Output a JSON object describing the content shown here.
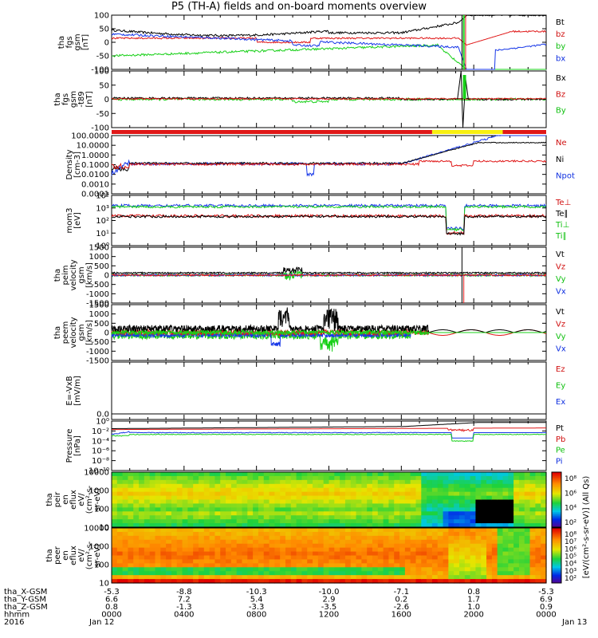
{
  "title": "P5 (TH-A) fields and on-board moments overview",
  "chart_data": {
    "type": "line",
    "panels": [
      {
        "id": "p1",
        "ylabel_lines": [
          "tha",
          "fgs",
          "gsm",
          "[nT]"
        ],
        "yticks": [
          "100",
          "50",
          "0",
          "-50",
          "-100"
        ],
        "ylim": [
          -100,
          100
        ],
        "legend": [
          {
            "text": "Bt",
            "color": "#000000"
          },
          {
            "text": "bz",
            "color": "#d01010"
          },
          {
            "text": "by",
            "color": "#10c010"
          },
          {
            "text": "bx",
            "color": "#1030e0"
          }
        ]
      },
      {
        "id": "p2",
        "ylabel_lines": [
          "tha",
          "fgs",
          "gsm",
          "-t89",
          "[nT]"
        ],
        "yticks": [
          "100",
          "50",
          "0",
          "-50",
          "-100"
        ],
        "ylim": [
          -120,
          120
        ],
        "legend": [
          {
            "text": "Bx",
            "color": "#000000"
          },
          {
            "text": "Bz",
            "color": "#d01010"
          },
          {
            "text": "By",
            "color": "#10c010"
          }
        ]
      },
      {
        "id": "p3",
        "ylabel_lines": [
          "Density",
          "[cm-3]"
        ],
        "yticks": [
          "100.0000",
          "10.0000",
          "1.0000",
          "0.1000",
          "0.0100",
          "0.0010",
          "0.0001"
        ],
        "legend": [
          {
            "text": "Ne",
            "color": "#d01010"
          },
          {
            "text": "Ni",
            "color": "#000000"
          },
          {
            "text": "Npot",
            "color": "#1030e0"
          }
        ]
      },
      {
        "id": "p4",
        "ylabel_lines": [
          "mom3",
          "[eV]"
        ],
        "yticks": [
          "10⁴",
          "10³",
          "10²",
          "10¹",
          "10⁰"
        ],
        "legend": [
          {
            "text": "Te⊥",
            "color": "#d01010"
          },
          {
            "text": "Te∥",
            "color": "#000000"
          },
          {
            "text": "Ti⊥",
            "color": "#10c010"
          },
          {
            "text": "Ti∥",
            "color": "#10c010"
          }
        ]
      },
      {
        "id": "p5",
        "ylabel_lines": [
          "tha",
          "peim",
          "velocity",
          "gsm",
          "[km/s]"
        ],
        "yticks": [
          "1500",
          "1000",
          "500",
          "0",
          "-500",
          "-1000",
          "-1500"
        ],
        "ylim": [
          -1500,
          1500
        ],
        "legend": [
          {
            "text": "Vt",
            "color": "#000000"
          },
          {
            "text": "Vz",
            "color": "#d01010"
          },
          {
            "text": "Vy",
            "color": "#10c010"
          },
          {
            "text": "Vx",
            "color": "#1030e0"
          }
        ]
      },
      {
        "id": "p6",
        "ylabel_lines": [
          "tha",
          "peem",
          "velocity",
          "gsm",
          "[km/s]"
        ],
        "yticks": [
          "1500",
          "1000",
          "500",
          "0",
          "-500",
          "-1000",
          "-1500"
        ],
        "ylim": [
          -1500,
          1500
        ],
        "legend": [
          {
            "text": "Vt",
            "color": "#000000"
          },
          {
            "text": "Vz",
            "color": "#d01010"
          },
          {
            "text": "Vy",
            "color": "#10c010"
          },
          {
            "text": "Vx",
            "color": "#1030e0"
          }
        ]
      },
      {
        "id": "p7",
        "ylabel_lines": [
          "E=-VxB",
          "[mV/m]"
        ],
        "yticks": [
          "0.0"
        ],
        "legend": [
          {
            "text": "Ez",
            "color": "#d01010"
          },
          {
            "text": "Ey",
            "color": "#10c010"
          },
          {
            "text": "Ex",
            "color": "#1030e0"
          }
        ]
      },
      {
        "id": "p8",
        "ylabel_lines": [
          "Pressure",
          "[nPa]"
        ],
        "yticks": [
          "10⁰",
          "10⁻²",
          "10⁻⁴",
          "10⁻⁶",
          "10⁻⁸",
          "10⁻¹⁰"
        ],
        "legend": [
          {
            "text": "Pt",
            "color": "#000000"
          },
          {
            "text": "Pb",
            "color": "#d01010"
          },
          {
            "text": "Pe",
            "color": "#10c010"
          },
          {
            "text": "Pi",
            "color": "#1030e0"
          }
        ]
      },
      {
        "id": "p9",
        "ylabel_lines": [
          "tha",
          "peir",
          "en",
          "eflux",
          "eV/",
          "(cm²-s-",
          "sr-eV)"
        ],
        "yticks": [
          "10000",
          "1000",
          "100",
          "10"
        ]
      },
      {
        "id": "p10",
        "ylabel_lines": [
          "tha",
          "peer",
          "en",
          "eflux",
          "eV/",
          "(cm²-s-",
          "sr-eV)"
        ],
        "yticks": [
          "10000",
          "1000",
          "100",
          "10"
        ]
      }
    ],
    "colorbar1_ticks": [
      "10⁸",
      "10⁶",
      "10⁴",
      "10²"
    ],
    "colorbar2_ticks": [
      "10⁸",
      "10⁷",
      "10⁶",
      "10⁵",
      "10⁴",
      "10³",
      "10²"
    ],
    "colorbar_label": "[eV/(cm²-s-sr-eV)] (All Qs)",
    "x_axis": {
      "rows": [
        {
          "label": "tha_X-GSM",
          "values": [
            "-5.3",
            "-8.8",
            "-10.3",
            "-10.0",
            "-7.1",
            "0.8",
            "-5.3"
          ]
        },
        {
          "label": "tha_Y-GSM",
          "values": [
            "6.6",
            "7.2",
            "5.4",
            "2.9",
            "0.2",
            "1.7",
            "6.9"
          ]
        },
        {
          "label": "tha_Z-GSM",
          "values": [
            "0.8",
            "-1.3",
            "-3.3",
            "-3.5",
            "-2.6",
            "1.0",
            "0.9"
          ]
        },
        {
          "label": "hhmm",
          "values": [
            "0000",
            "0400",
            "0800",
            "1200",
            "1600",
            "2000",
            "0000"
          ]
        },
        {
          "label": "2016",
          "values": [
            "Jan 12",
            "",
            "",
            "",
            "",
            "",
            "Jan 13"
          ]
        }
      ],
      "hours": [
        0,
        4,
        8,
        12,
        16,
        20,
        24
      ]
    }
  }
}
